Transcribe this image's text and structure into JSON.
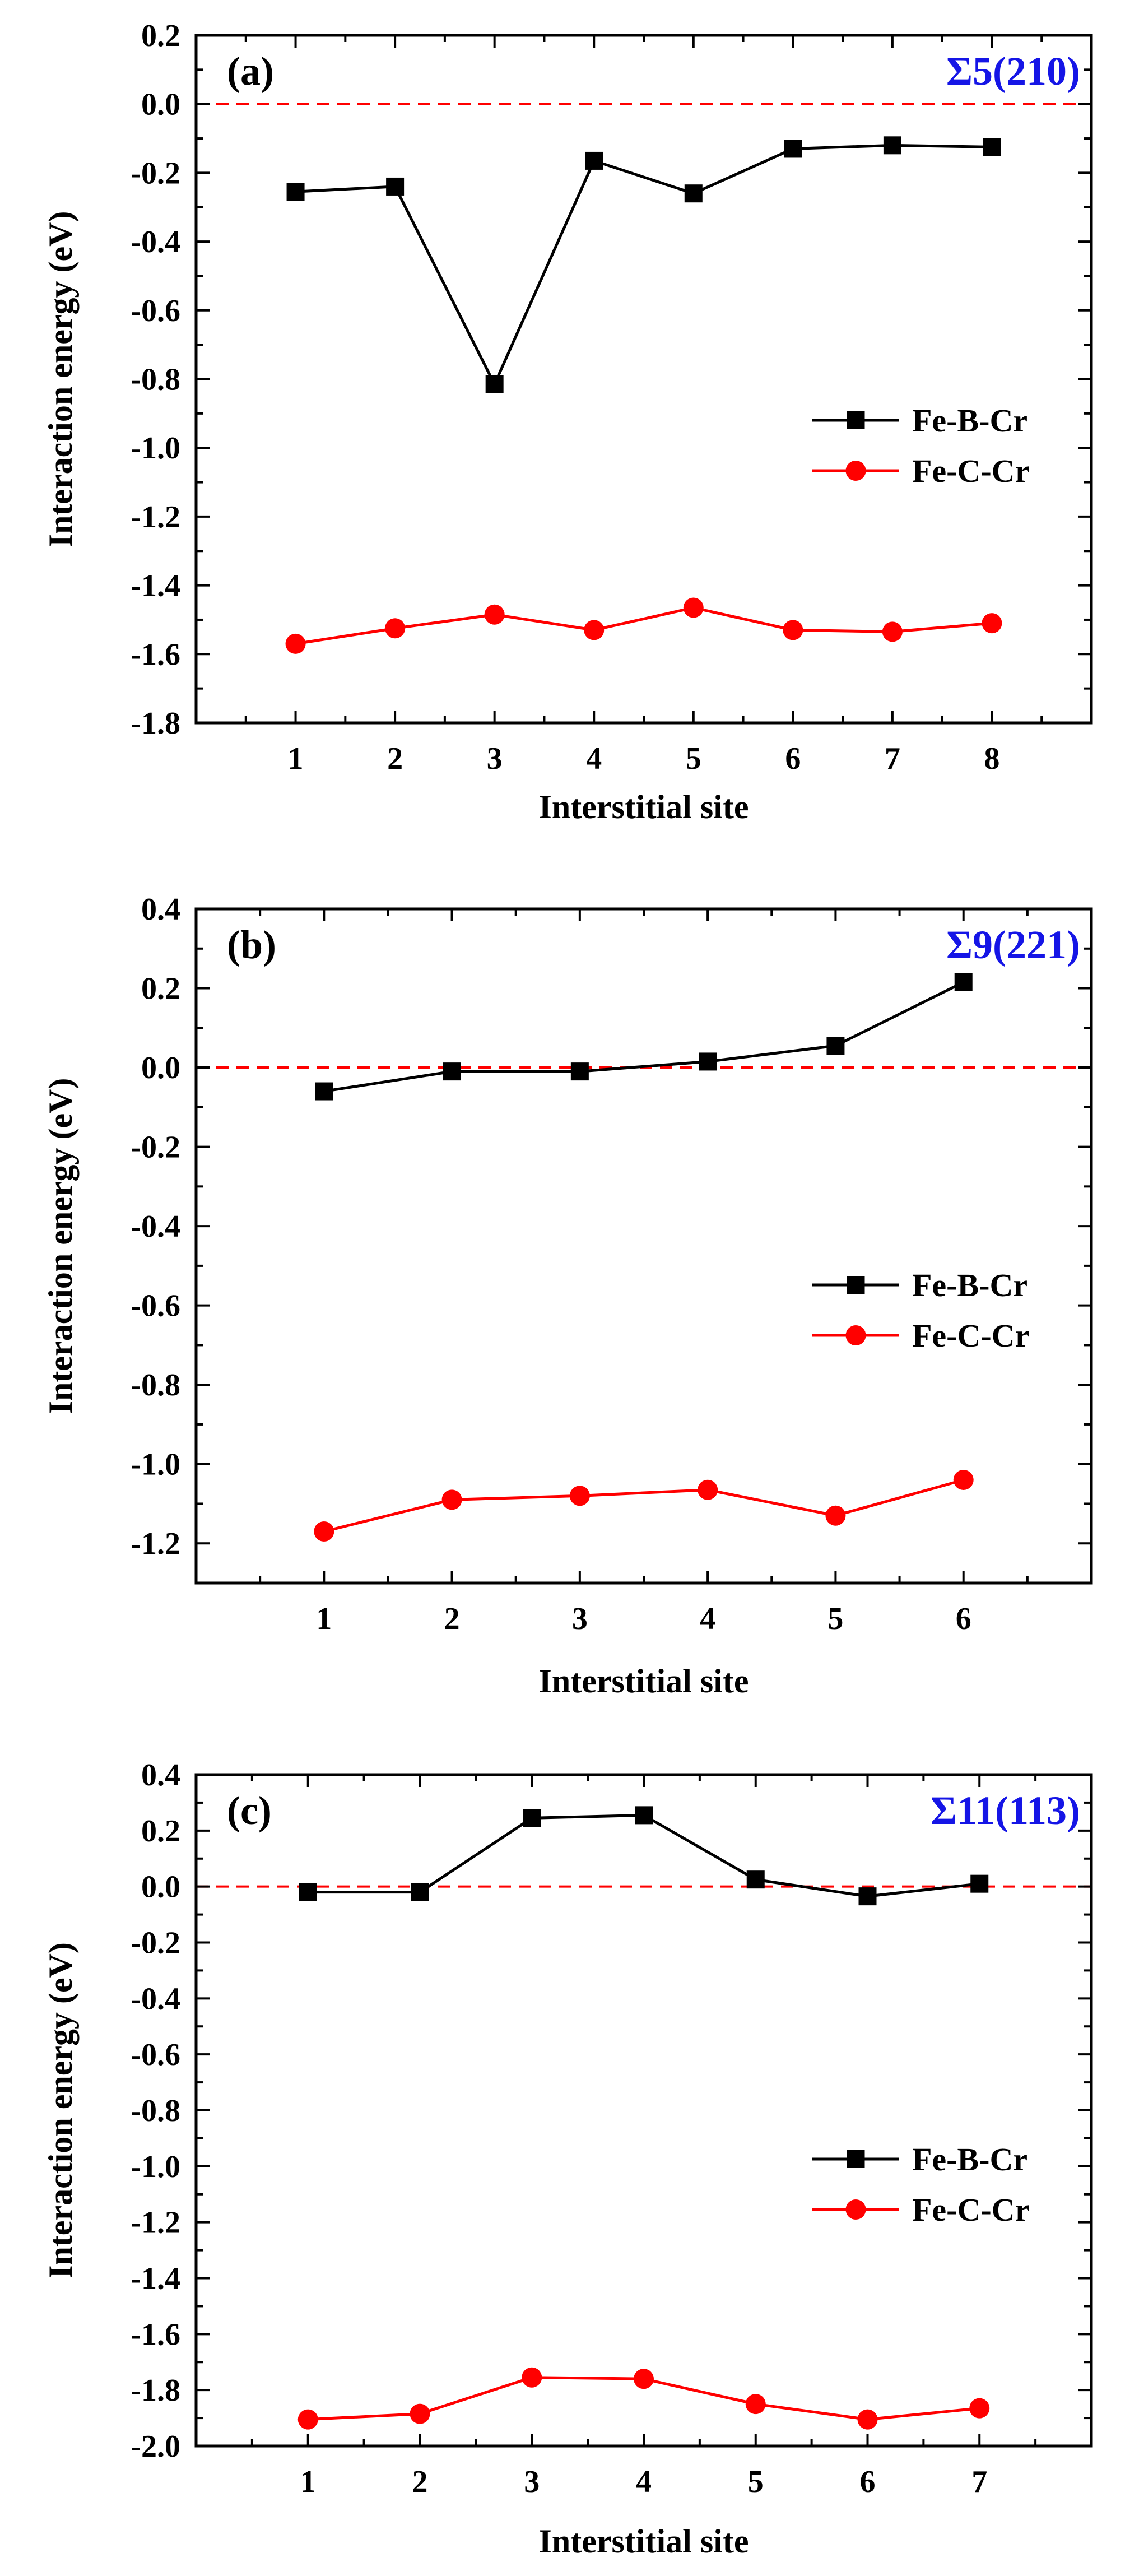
{
  "chart_data": [
    {
      "type": "line",
      "panel_label": "(a)",
      "annotation": "Σ5(210)",
      "xlabel": "Interstitial site",
      "ylabel": "Interaction energy (eV)",
      "ylim": [
        -1.8,
        0.2
      ],
      "ytick_step": 0.2,
      "yticks": [
        "0.2",
        "0.0",
        "-0.2",
        "-0.4",
        "-0.6",
        "-0.8",
        "-1.0",
        "-1.2",
        "-1.4",
        "-1.6",
        "-1.8"
      ],
      "categories": [
        "1",
        "2",
        "3",
        "4",
        "5",
        "6",
        "7",
        "8"
      ],
      "reference_line": 0.0,
      "series": [
        {
          "name": "Fe-B-Cr",
          "color": "#000000",
          "marker": "square",
          "values": [
            -0.255,
            -0.24,
            -0.815,
            -0.165,
            -0.26,
            -0.13,
            -0.12,
            -0.125
          ]
        },
        {
          "name": "Fe-C-Cr",
          "color": "#ff0000",
          "marker": "circle",
          "values": [
            -1.57,
            -1.525,
            -1.485,
            -1.53,
            -1.465,
            -1.53,
            -1.535,
            -1.51
          ]
        }
      ]
    },
    {
      "type": "line",
      "panel_label": "(b)",
      "annotation": "Σ9(221)",
      "xlabel": "Interstitial site",
      "ylabel": "Interaction energy (eV)",
      "ylim": [
        -1.3,
        0.4
      ],
      "ytick_step": 0.2,
      "yticks": [
        "0.4",
        "0.2",
        "0.0",
        "-0.2",
        "-0.4",
        "-0.6",
        "-0.8",
        "-1.0",
        "-1.2"
      ],
      "categories": [
        "1",
        "2",
        "3",
        "4",
        "5",
        "6"
      ],
      "reference_line": 0.0,
      "series": [
        {
          "name": "Fe-B-Cr",
          "color": "#000000",
          "marker": "square",
          "values": [
            -0.06,
            -0.01,
            -0.01,
            0.015,
            0.055,
            0.215
          ]
        },
        {
          "name": "Fe-C-Cr",
          "color": "#ff0000",
          "marker": "circle",
          "values": [
            -1.17,
            -1.09,
            -1.08,
            -1.065,
            -1.13,
            -1.04
          ]
        }
      ]
    },
    {
      "type": "line",
      "panel_label": "(c)",
      "annotation": "Σ11(113)",
      "xlabel": "Interstitial site",
      "ylabel": "Interaction energy (eV)",
      "ylim": [
        -2.0,
        0.4
      ],
      "ytick_step": 0.2,
      "yticks": [
        "0.4",
        "0.2",
        "0.0",
        "-0.2",
        "-0.4",
        "-0.6",
        "-0.8",
        "-1.0",
        "-1.2",
        "-1.4",
        "-1.6",
        "-1.8",
        "-2.0"
      ],
      "categories": [
        "1",
        "2",
        "3",
        "4",
        "5",
        "6",
        "7"
      ],
      "reference_line": 0.0,
      "series": [
        {
          "name": "Fe-B-Cr",
          "color": "#000000",
          "marker": "square",
          "values": [
            -0.02,
            -0.02,
            0.245,
            0.255,
            0.025,
            -0.035,
            0.01
          ]
        },
        {
          "name": "Fe-C-Cr",
          "color": "#ff0000",
          "marker": "circle",
          "values": [
            -1.905,
            -1.885,
            -1.755,
            -1.76,
            -1.85,
            -1.905,
            -1.865
          ]
        }
      ]
    }
  ],
  "colors": {
    "axis": "#000000",
    "annotation": "#1515e6",
    "reference_line": "#ff0000"
  }
}
